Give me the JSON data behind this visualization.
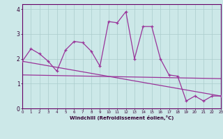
{
  "xlabel": "Windchill (Refroidissement éolien,°C)",
  "x": [
    0,
    1,
    2,
    3,
    4,
    5,
    6,
    7,
    8,
    9,
    10,
    11,
    12,
    13,
    14,
    15,
    16,
    17,
    18,
    19,
    20,
    21,
    22,
    23
  ],
  "y_main": [
    1.9,
    2.4,
    2.2,
    1.9,
    1.5,
    2.35,
    2.7,
    2.65,
    2.3,
    1.7,
    3.5,
    3.45,
    3.9,
    2.0,
    3.3,
    3.3,
    2.0,
    1.35,
    1.3,
    0.3,
    0.5,
    0.3,
    0.5,
    0.5
  ],
  "y_upper_start": 1.35,
  "y_upper_end": 1.2,
  "y_lower_start": 1.9,
  "y_lower_end": 0.5,
  "line_color": "#993399",
  "bg_color": "#cce8e8",
  "grid_color": "#aacccc",
  "ylim": [
    0,
    4.2
  ],
  "xlim": [
    0,
    23
  ]
}
